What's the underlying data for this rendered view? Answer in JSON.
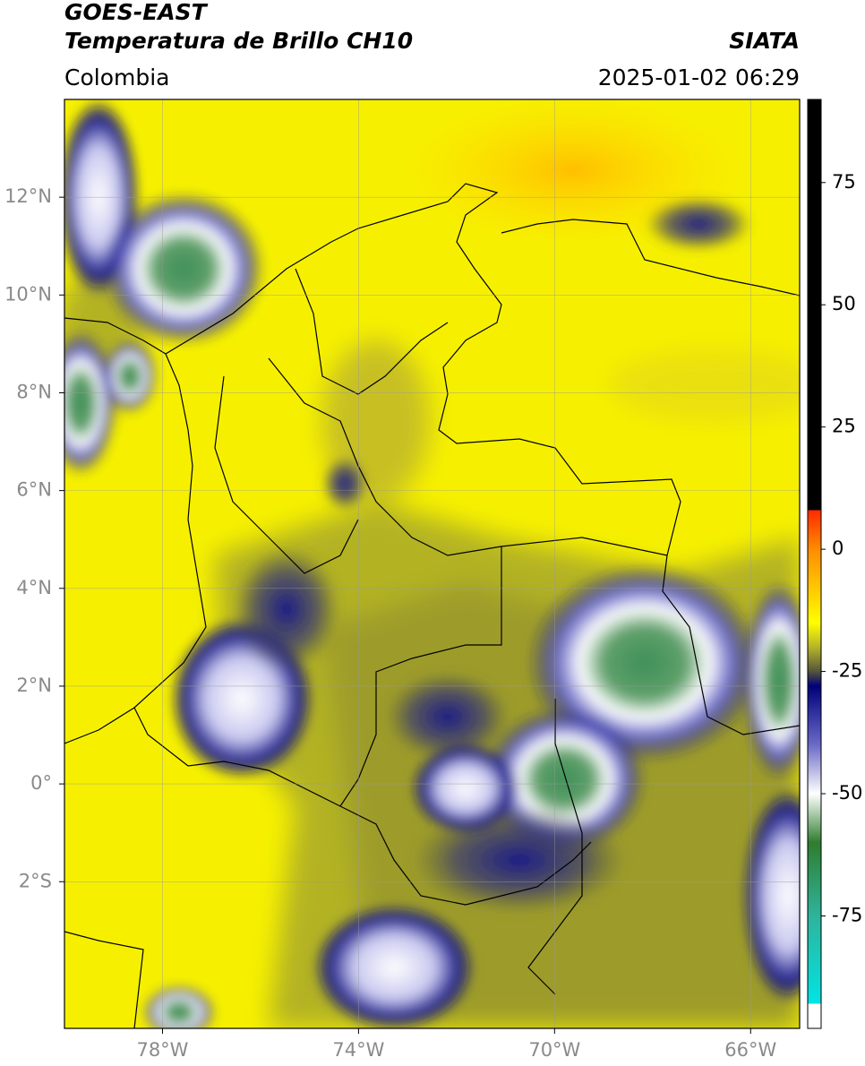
{
  "header": {
    "title": "GOES-EAST",
    "subtitle": "Temperatura de Brillo CH10",
    "source": "SIATA",
    "region": "Colombia",
    "datetime": "2025-01-02 06:29"
  },
  "map": {
    "xlim": [
      -80,
      -65
    ],
    "ylim": [
      -5,
      14
    ],
    "grid": true,
    "xticks": [
      {
        "value": -78,
        "label": "78°W"
      },
      {
        "value": -74,
        "label": "74°W"
      },
      {
        "value": -70,
        "label": "70°W"
      },
      {
        "value": -66,
        "label": "66°W"
      }
    ],
    "yticks": [
      {
        "value": 12,
        "label": "12°N"
      },
      {
        "value": 10,
        "label": "10°N"
      },
      {
        "value": 8,
        "label": "8°N"
      },
      {
        "value": 6,
        "label": "6°N"
      },
      {
        "value": 4,
        "label": "4°N"
      },
      {
        "value": 2,
        "label": "2°N"
      },
      {
        "value": 0,
        "label": "0°"
      },
      {
        "value": -2,
        "label": "2°S"
      }
    ]
  },
  "colorbar": {
    "lim": [
      -98,
      92
    ],
    "ticks": [
      75,
      50,
      25,
      0,
      -25,
      -50,
      -75
    ],
    "stops": [
      {
        "value": 92,
        "color": "#000000"
      },
      {
        "value": 8,
        "color": "#000000"
      },
      {
        "value": 8,
        "color": "#ff2a00"
      },
      {
        "value": 0,
        "color": "#ff8c00"
      },
      {
        "value": -10,
        "color": "#ffd700"
      },
      {
        "value": -15,
        "color": "#ffff00"
      },
      {
        "value": -20,
        "color": "#b5b52a"
      },
      {
        "value": -25,
        "color": "#55553a"
      },
      {
        "value": -28,
        "color": "#00007a"
      },
      {
        "value": -40,
        "color": "#6a6ac8"
      },
      {
        "value": -50,
        "color": "#ffffff"
      },
      {
        "value": -60,
        "color": "#2f7d2f"
      },
      {
        "value": -75,
        "color": "#2fb39b"
      },
      {
        "value": -93,
        "color": "#00e5e5"
      },
      {
        "value": -93,
        "color": "#ffffff"
      },
      {
        "value": -98,
        "color": "#ffffff"
      }
    ]
  }
}
